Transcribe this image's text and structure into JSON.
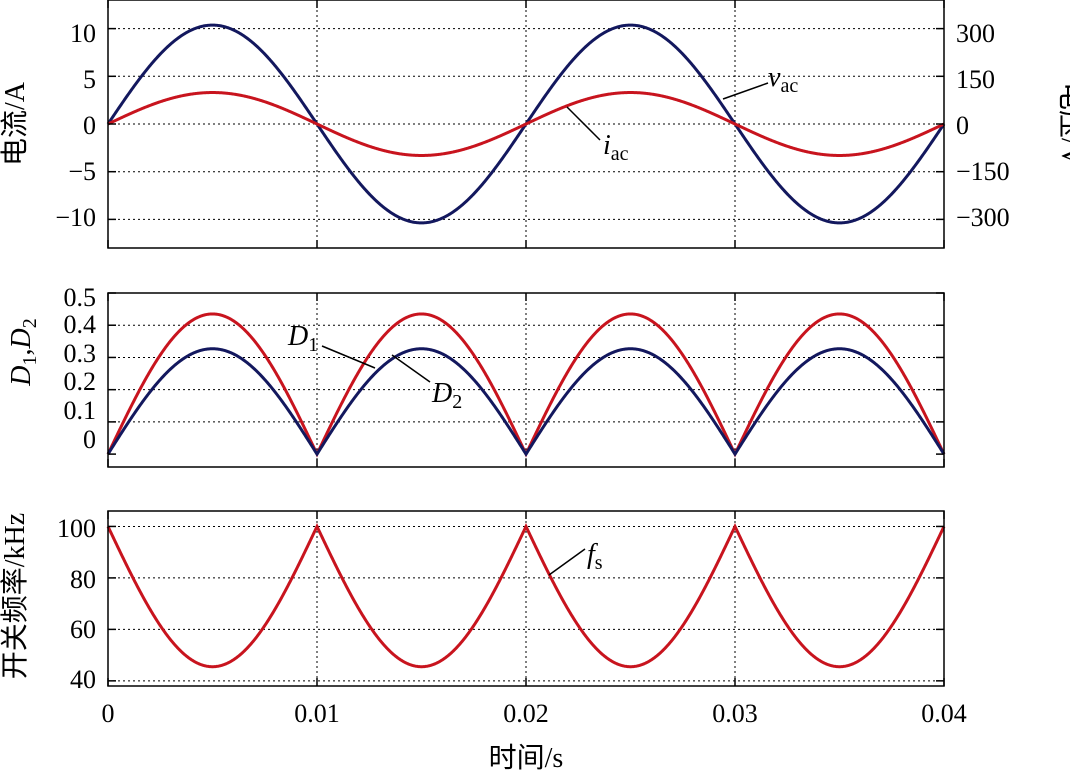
{
  "colors": {
    "red": "#c8141e",
    "navy": "#13185e"
  },
  "x_axis": {
    "label": "时间/s",
    "ticks": [
      "0",
      "0.01",
      "0.02",
      "0.03",
      "0.04"
    ],
    "range": [
      0,
      0.04
    ]
  },
  "panels": {
    "top": {
      "ylabel_left": "电流/A",
      "ylabel_right": "电压/V",
      "left_ticks": [
        "10",
        "5",
        "0",
        "−5",
        "−10"
      ],
      "right_ticks": [
        "300",
        "150",
        "0",
        "−150",
        "−300"
      ],
      "ann_vac": "v",
      "ann_vac_sub": "ac",
      "ann_iac": "i",
      "ann_iac_sub": "ac"
    },
    "middle": {
      "ylabel_main1": "D",
      "ylabel_sub1": "1",
      "ylabel_sep": ",",
      "ylabel_main2": "D",
      "ylabel_sub2": "2",
      "ticks": [
        "0.5",
        "0.4",
        "0.3",
        "0.2",
        "0.1",
        "0"
      ],
      "ann_d1": "D",
      "ann_d1_sub": "1",
      "ann_d2": "D",
      "ann_d2_sub": "2"
    },
    "bottom": {
      "ylabel": "开关频率/kHz",
      "ticks": [
        "100",
        "80",
        "60",
        "40"
      ],
      "ann_fs": "f",
      "ann_fs_sub": "s"
    }
  },
  "chart_data": [
    {
      "type": "line",
      "title": "",
      "xlabel": "时间/s",
      "ylabel": "电流/A",
      "ylabel_right": "电压/V",
      "xlim": [
        0,
        0.04
      ],
      "ylim": [
        -13,
        13
      ],
      "ylim_right": [
        -390,
        390
      ],
      "grid": true,
      "series": [
        {
          "name": "v_ac",
          "color": "#13185e",
          "axis": "right",
          "waveform": "sine",
          "amplitude": 311,
          "frequency_hz": 50
        },
        {
          "name": "i_ac",
          "color": "#c8141e",
          "axis": "left",
          "waveform": "sine",
          "amplitude": 3.3,
          "frequency_hz": 50
        }
      ]
    },
    {
      "type": "line",
      "title": "",
      "xlabel": "时间/s",
      "ylabel": "D1,D2",
      "xlim": [
        0,
        0.04
      ],
      "ylim": [
        -0.04,
        0.5
      ],
      "grid": true,
      "series": [
        {
          "name": "D1",
          "color": "#c8141e",
          "waveform": "abs-sine",
          "amplitude": 0.435,
          "frequency_hz": 50
        },
        {
          "name": "D2",
          "color": "#13185e",
          "waveform": "abs-sine",
          "amplitude": 0.327,
          "frequency_hz": 50
        }
      ]
    },
    {
      "type": "line",
      "title": "",
      "xlabel": "时间/s",
      "ylabel": "开关频率/kHz",
      "xlim": [
        0,
        0.04
      ],
      "ylim": [
        38,
        106
      ],
      "grid": true,
      "series": [
        {
          "name": "f_s",
          "color": "#c8141e",
          "waveform": "100 - 54.5*|sin|",
          "max": 100,
          "min": 45.5,
          "frequency_hz": 50
        }
      ]
    }
  ]
}
